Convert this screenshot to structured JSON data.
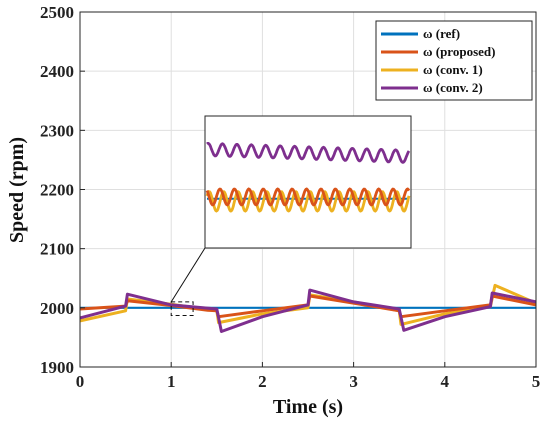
{
  "chart_data": {
    "type": "line",
    "xlabel": "Time (s)",
    "ylabel": "Speed (rpm)",
    "xlim": [
      0,
      5
    ],
    "ylim": [
      1900,
      2500
    ],
    "xticks": [
      "0",
      "1",
      "2",
      "3",
      "4",
      "5"
    ],
    "yticks": [
      "1900",
      "2000",
      "2100",
      "2200",
      "2300",
      "2400",
      "2500"
    ],
    "grid": true,
    "legend_position": "top-right",
    "series": [
      {
        "name": "ω (ref)",
        "color": "#0072BD",
        "x": [
          0,
          5
        ],
        "y": [
          2000,
          2000
        ]
      },
      {
        "name": "ω (proposed)",
        "color": "#D95319",
        "x": [
          0,
          0.5,
          0.52,
          1.0,
          1.4,
          1.5,
          1.52,
          2.0,
          2.5,
          2.52,
          3.0,
          3.5,
          3.52,
          4.0,
          4.5,
          4.52,
          5.0
        ],
        "y": [
          1998,
          2003,
          2012,
          2004,
          1996,
          1995,
          1985,
          1995,
          2005,
          2020,
          2008,
          1995,
          1985,
          1995,
          2005,
          2020,
          2005
        ]
      },
      {
        "name": "ω (conv. 1)",
        "color": "#EDB120",
        "x": [
          0,
          0.5,
          0.52,
          1.0,
          1.5,
          1.52,
          2.0,
          2.5,
          2.52,
          3.0,
          3.5,
          3.52,
          4.0,
          4.5,
          4.55,
          5.0
        ],
        "y": [
          1978,
          1995,
          2015,
          2006,
          1995,
          1975,
          1990,
          2000,
          2022,
          2010,
          1995,
          1972,
          1990,
          2002,
          2038,
          2008
        ]
      },
      {
        "name": "ω (conv. 2)",
        "color": "#7E2F8E",
        "x": [
          0,
          0.5,
          0.52,
          1.0,
          1.5,
          1.55,
          2.0,
          2.5,
          2.52,
          3.0,
          3.5,
          3.55,
          4.0,
          4.5,
          4.52,
          5.0
        ],
        "y": [
          1983,
          2003,
          2023,
          2005,
          1998,
          1960,
          1985,
          2005,
          2030,
          2010,
          1998,
          1962,
          1985,
          2002,
          2025,
          2010
        ]
      }
    ],
    "inset": {
      "zoom_region": {
        "x": [
          1.0,
          1.24
        ],
        "y": [
          1987,
          2010
        ]
      },
      "series_offsets": {
        "ω (ref)": 2206,
        "ω (proposed)": 2208,
        "ω (conv. 1)": 2203,
        "ω (conv. 2)": 2262
      },
      "series_amplitudes": {
        "ω (ref)": 0,
        "ω (proposed)": 18,
        "ω (conv. 1)": 22,
        "ω (conv. 2)": 14
      },
      "inset_ylim": [
        2150,
        2300
      ]
    }
  }
}
